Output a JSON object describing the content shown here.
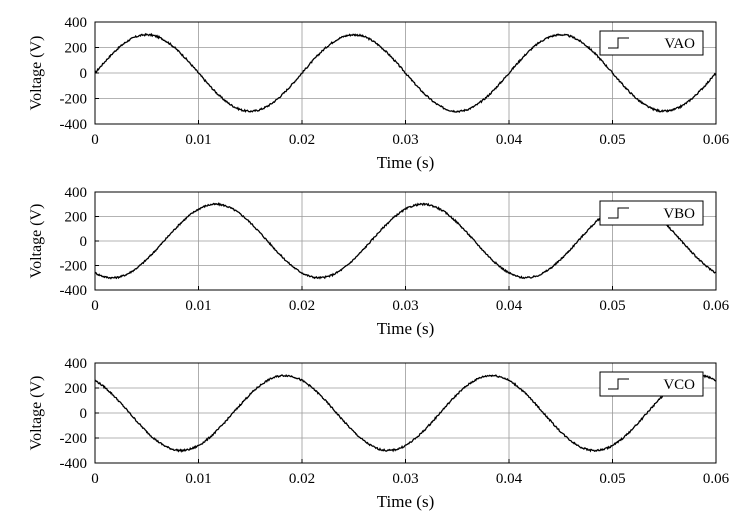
{
  "chart_data": [
    {
      "type": "line",
      "xlabel": "Time (s)",
      "ylabel": "Voltage (V)",
      "xlim": [
        0,
        0.06
      ],
      "ylim": [
        -400,
        400
      ],
      "xticks": [
        "0",
        "0.01",
        "0.02",
        "0.03",
        "0.04",
        "0.05",
        "0.06"
      ],
      "yticks": [
        "400",
        "200",
        "0",
        "-200",
        "-400"
      ],
      "grid": true,
      "legend": "top-right",
      "series": [
        {
          "name": "VAO",
          "amplitude": 300,
          "frequency": 50,
          "phase_deg": 0,
          "x_start": 0,
          "x_end": 0.06,
          "color": "#000000"
        }
      ]
    },
    {
      "type": "line",
      "xlabel": "Time (s)",
      "ylabel": "Voltage (V)",
      "xlim": [
        0,
        0.06
      ],
      "ylim": [
        -400,
        400
      ],
      "xticks": [
        "0",
        "0.01",
        "0.02",
        "0.03",
        "0.04",
        "0.05",
        "0.06"
      ],
      "yticks": [
        "400",
        "200",
        "0",
        "-200",
        "-400"
      ],
      "grid": true,
      "legend": "top-right",
      "series": [
        {
          "name": "VBO",
          "amplitude": 300,
          "frequency": 50,
          "phase_deg": -120,
          "x_start": 0,
          "x_end": 0.06,
          "color": "#000000"
        }
      ]
    },
    {
      "type": "line",
      "xlabel": "Time (s)",
      "ylabel": "Voltage (V)",
      "xlim": [
        0,
        0.06
      ],
      "ylim": [
        -400,
        400
      ],
      "xticks": [
        "0",
        "0.01",
        "0.02",
        "0.03",
        "0.04",
        "0.05",
        "0.06"
      ],
      "yticks": [
        "400",
        "200",
        "0",
        "-200",
        "-400"
      ],
      "grid": true,
      "legend": "top-right",
      "series": [
        {
          "name": "VCO",
          "amplitude": 300,
          "frequency": 50,
          "phase_deg": 120,
          "x_start": 0,
          "x_end": 0.06,
          "color": "#000000"
        }
      ]
    }
  ]
}
